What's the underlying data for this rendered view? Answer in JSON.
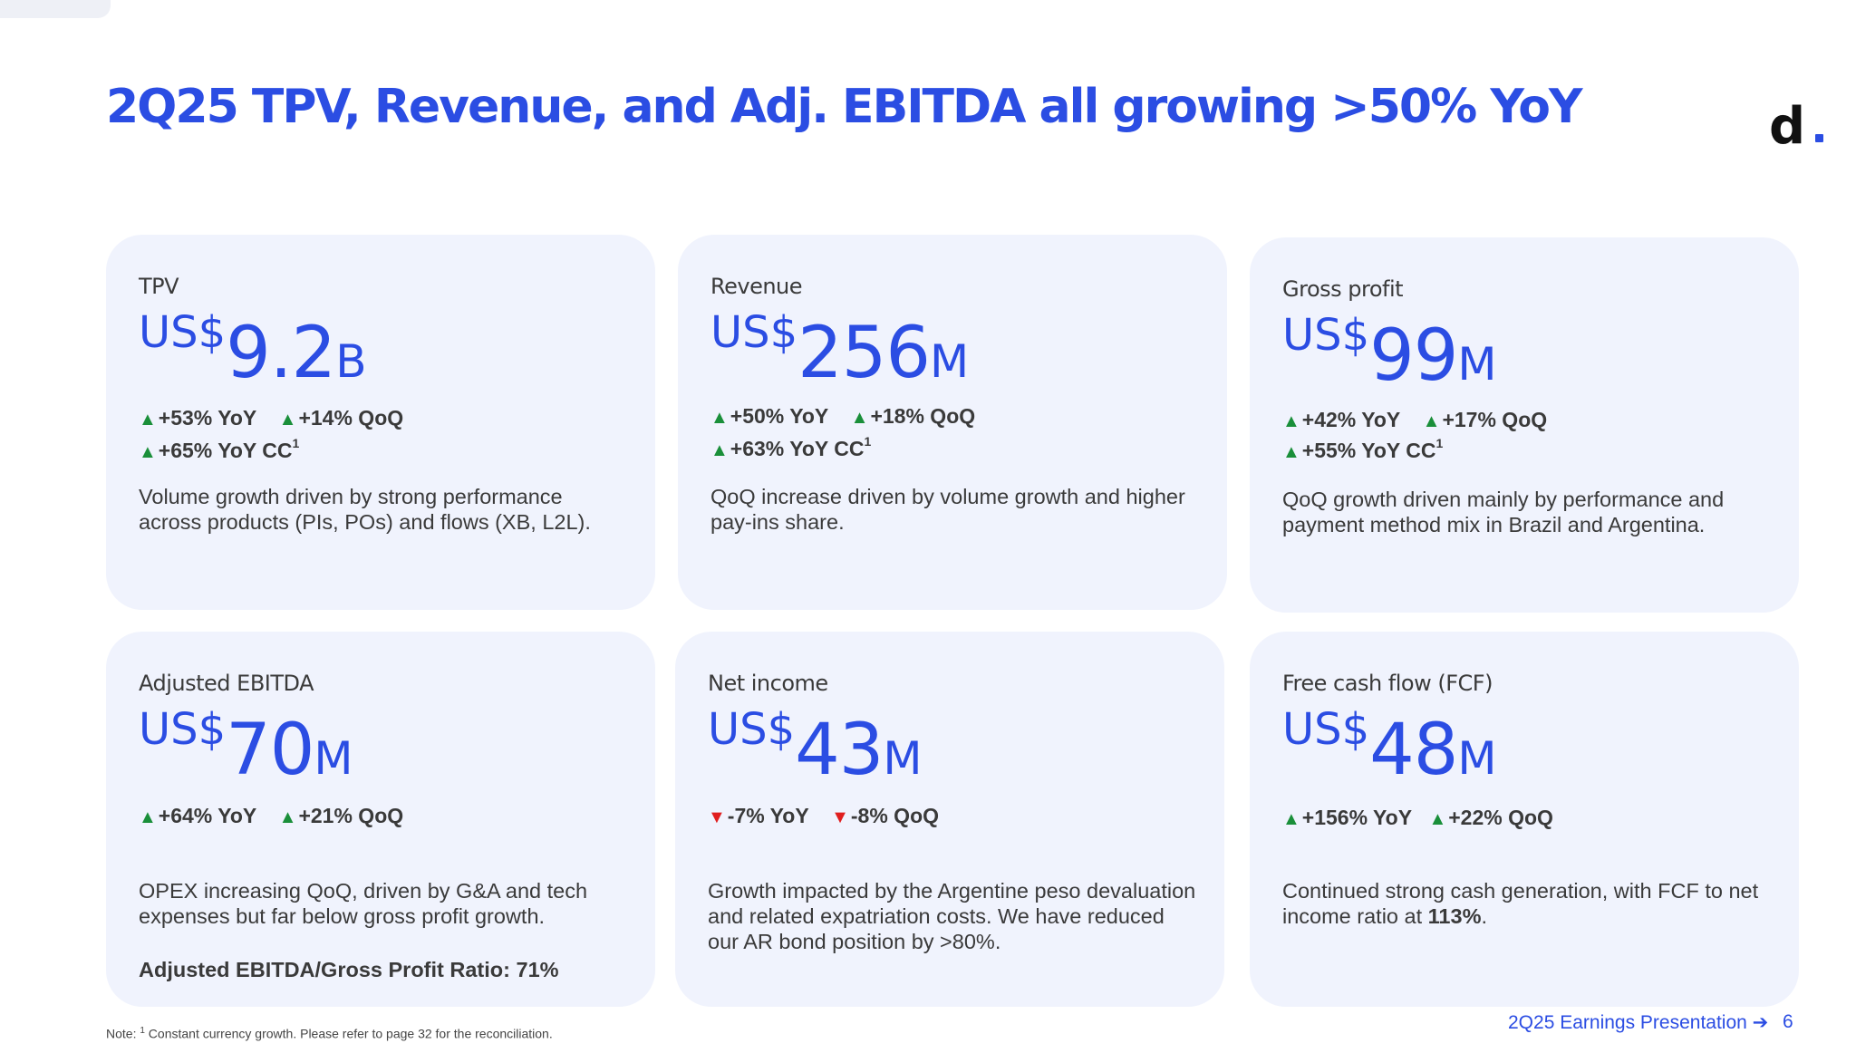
{
  "title": "2Q25 TPV, Revenue, and Adj. EBITDA all growing >50% YoY",
  "logo": {
    "letter": "d"
  },
  "colors": {
    "accent": "#2b4de3",
    "card_bg": "#f0f3fd",
    "up": "#1a8f3a",
    "down": "#e01e1e"
  },
  "cards": [
    {
      "label": "TPV",
      "currency": "US$",
      "value": "9.2",
      "unit": "B",
      "growth_row1": [
        {
          "dir": "up",
          "text": "+53% YoY"
        },
        {
          "dir": "up",
          "text": "+14% QoQ"
        }
      ],
      "growth_row2": [
        {
          "dir": "up",
          "text": "+65% YoY CC",
          "sup": "1"
        }
      ],
      "description": "Volume growth driven by strong performance across products (PIs, POs) and flows (XB, L2L)."
    },
    {
      "label": "Revenue",
      "currency": "US$",
      "value": "256",
      "unit": "M",
      "growth_row1": [
        {
          "dir": "up",
          "text": "+50% YoY"
        },
        {
          "dir": "up",
          "text": "+18% QoQ"
        }
      ],
      "growth_row2": [
        {
          "dir": "up",
          "text": "+63% YoY CC",
          "sup": "1"
        }
      ],
      "description": "QoQ increase driven by volume growth and higher pay-ins share."
    },
    {
      "label": "Gross profit",
      "currency": "US$",
      "value": "99",
      "unit": "M",
      "growth_row1": [
        {
          "dir": "up",
          "text": "+42% YoY"
        },
        {
          "dir": "up",
          "text": "+17% QoQ"
        }
      ],
      "growth_row2": [
        {
          "dir": "up",
          "text": "+55% YoY CC",
          "sup": "1"
        }
      ],
      "description": "QoQ growth driven mainly by performance and payment method mix in Brazil and Argentina."
    },
    {
      "label": "Adjusted EBITDA",
      "currency": "US$",
      "value": "70",
      "unit": "M",
      "growth_row1": [
        {
          "dir": "up",
          "text": "+64% YoY"
        },
        {
          "dir": "up",
          "text": "+21% QoQ"
        }
      ],
      "description": "OPEX increasing QoQ, driven by G&A and tech expenses but far below gross profit growth.",
      "ratio": "Adjusted EBITDA/Gross Profit Ratio: 71%"
    },
    {
      "label": "Net income",
      "currency": "US$",
      "value": "43",
      "unit": "M",
      "growth_row1": [
        {
          "dir": "down",
          "text": "-7% YoY"
        },
        {
          "dir": "down",
          "text": "-8% QoQ"
        }
      ],
      "description": "Growth impacted by the Argentine peso devaluation and related expatriation costs. We have reduced our AR bond position by >80%."
    },
    {
      "label": "Free cash flow (FCF)",
      "currency": "US$",
      "value": "48",
      "unit": "M",
      "growth_row1": [
        {
          "dir": "up",
          "text": "+156% YoY"
        },
        {
          "dir": "up",
          "text": "+22% QoQ"
        }
      ],
      "description_pre": "Continued strong cash generation, with FCF to net income ratio at ",
      "description_bold": "113%",
      "description_post": "."
    }
  ],
  "note": {
    "prefix": "Note: ",
    "sup": "1",
    "text": " Constant currency growth. Please refer to page 32 for the reconciliation."
  },
  "footer": {
    "link": "2Q25 Earnings Presentation ➔",
    "page": "6"
  }
}
